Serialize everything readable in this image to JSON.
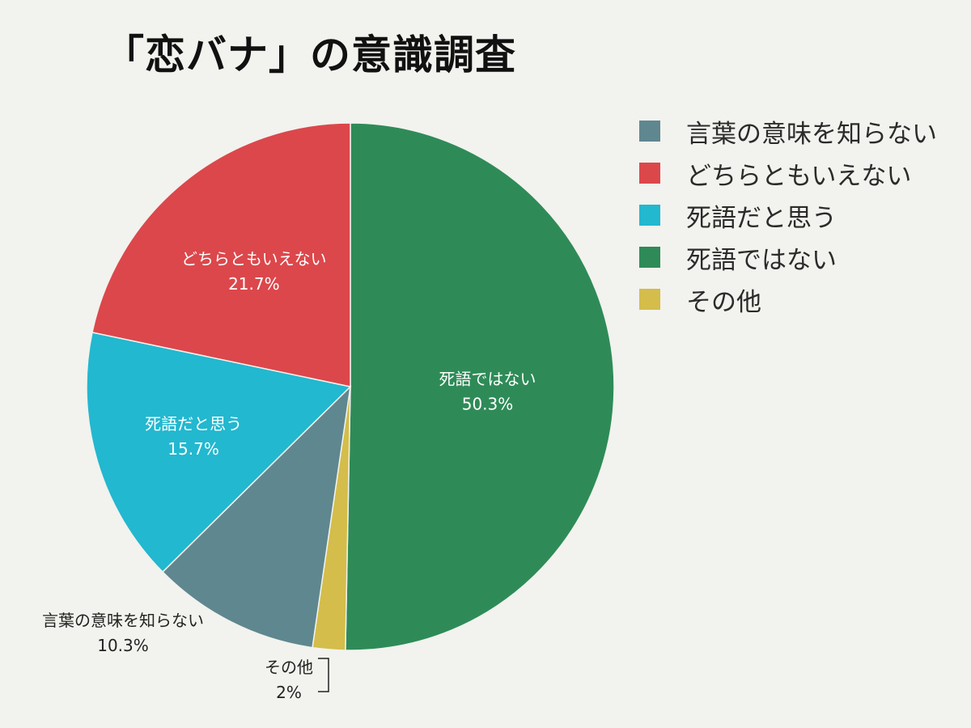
{
  "chart_data": {
    "type": "pie",
    "title": "「恋バナ」の意識調査",
    "slices": [
      {
        "label": "死語ではない",
        "value": 50.3,
        "value_label": "50.3%",
        "color": "#2e8b57"
      },
      {
        "label": "その他",
        "value": 2,
        "value_label": "2%",
        "color": "#d4bd4a"
      },
      {
        "label": "言葉の意味を知らない",
        "value": 10.3,
        "value_label": "10.3%",
        "color": "#5f8790"
      },
      {
        "label": "死語だと思う",
        "value": 15.7,
        "value_label": "15.7%",
        "color": "#22b8cf"
      },
      {
        "label": "どちらともいえない",
        "value": 21.7,
        "value_label": "21.7%",
        "color": "#dc474b"
      }
    ],
    "legend": {
      "position": "right",
      "entries": [
        {
          "label": "言葉の意味を知らない",
          "color": "#5f8790"
        },
        {
          "label": "どちらともいえない",
          "color": "#dc474b"
        },
        {
          "label": "死語だと思う",
          "color": "#22b8cf"
        },
        {
          "label": "死語ではない",
          "color": "#2e8b57"
        },
        {
          "label": "その他",
          "color": "#d4bd4a"
        }
      ]
    }
  }
}
